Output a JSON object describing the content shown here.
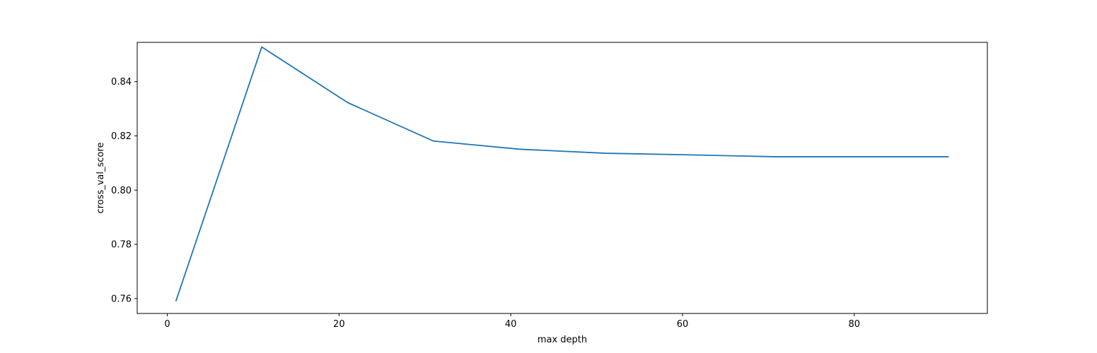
{
  "chart_data": {
    "type": "line",
    "title": "",
    "xlabel": "max depth",
    "ylabel": "cross_val_score",
    "xlim": [
      -3.5,
      95.5
    ],
    "ylim": [
      0.7545,
      0.8545
    ],
    "xticks": [
      0,
      20,
      40,
      60,
      80
    ],
    "xtick_labels": [
      "0",
      "20",
      "40",
      "60",
      "80"
    ],
    "yticks": [
      0.76,
      0.78,
      0.8,
      0.82,
      0.84
    ],
    "ytick_labels": [
      "0.76",
      "0.78",
      "0.80",
      "0.82",
      "0.84"
    ],
    "grid": false,
    "legend": "none",
    "series": [
      {
        "color": "#1f77b4",
        "x": [
          1,
          11,
          21,
          31,
          41,
          51,
          61,
          71,
          81,
          91
        ],
        "y": [
          0.759,
          0.8528,
          0.8323,
          0.8181,
          0.8151,
          0.8136,
          0.813,
          0.8123,
          0.8123,
          0.8123
        ]
      }
    ]
  }
}
